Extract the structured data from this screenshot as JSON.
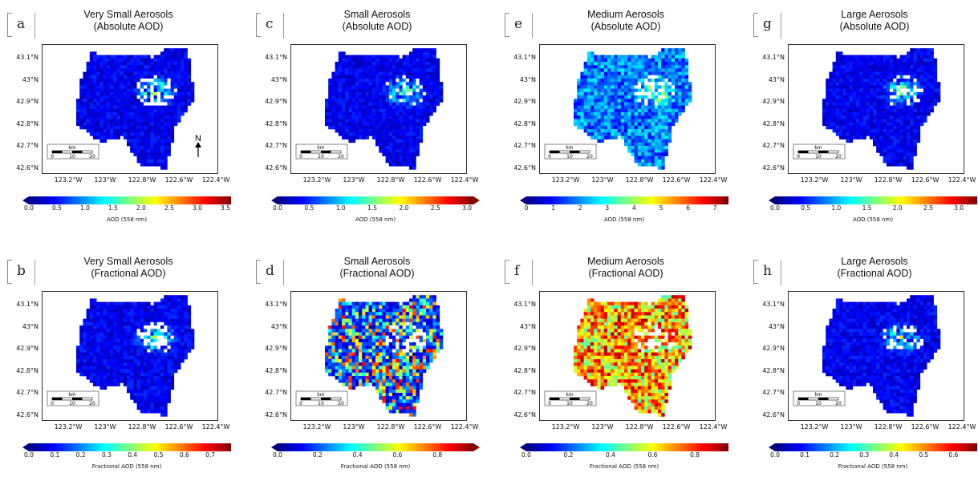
{
  "colorscale": [
    "#00007f",
    "#0000ff",
    "#007fff",
    "#00ffff",
    "#7fff7f",
    "#ffff00",
    "#ff7f00",
    "#ff0000",
    "#7f0000"
  ],
  "panels": [
    {
      "letter": "a",
      "title1": "Very Small Aerosols",
      "title2": "(Absolute AOD)",
      "cb_ticks": [
        "0.0",
        "0.5",
        "1.0",
        "1.5",
        "2.0",
        "2.5",
        "3.0",
        "3.5"
      ],
      "cb_label": "AOD (558 nm)",
      "cb_min": 0,
      "cb_max": 3.6,
      "cb_ext": "left",
      "north": true
    },
    {
      "letter": "c",
      "title1": "Small Aerosols",
      "title2": "(Absolute AOD)",
      "cb_ticks": [
        "0.0",
        "0.5",
        "1.0",
        "1.5",
        "2.0",
        "2.5",
        "3.0"
      ],
      "cb_label": "AOD (558 nm)",
      "cb_min": 0,
      "cb_max": 3.1,
      "cb_ext": "both",
      "north": false
    },
    {
      "letter": "e",
      "title1": "Medium Aerosols",
      "title2": "(Absolute AOD)",
      "cb_ticks": [
        "0",
        "1",
        "2",
        "3",
        "4",
        "5",
        "6",
        "7"
      ],
      "cb_label": "AOD (558 nm)",
      "cb_min": 0,
      "cb_max": 7.5,
      "cb_ext": "left",
      "north": false
    },
    {
      "letter": "g",
      "title1": "Large Aerosols",
      "title2": "(Absolute AOD)",
      "cb_ticks": [
        "0.0",
        "0.5",
        "1.0",
        "1.5",
        "2.0",
        "2.5",
        "3.0"
      ],
      "cb_label": "AOD (558 nm)",
      "cb_min": 0,
      "cb_max": 3.3,
      "cb_ext": "left",
      "north": false
    },
    {
      "letter": "b",
      "title1": "Very Small Aerosols",
      "title2": "(Fractional AOD)",
      "cb_ticks": [
        "0.0",
        "0.1",
        "0.2",
        "0.3",
        "0.4",
        "0.5",
        "0.6",
        "0.7"
      ],
      "cb_label": "Fractional AOD (558 nm)",
      "cb_min": 0,
      "cb_max": 0.78,
      "cb_ext": "left",
      "north": false
    },
    {
      "letter": "d",
      "title1": "Small Aerosols",
      "title2": "(Fractional AOD)",
      "cb_ticks": [
        "0.0",
        "0.2",
        "0.4",
        "0.6",
        "0.8"
      ],
      "cb_label": "Fractional AOD (558 nm)",
      "cb_min": 0,
      "cb_max": 0.98,
      "cb_ext": "both",
      "north": false
    },
    {
      "letter": "f",
      "title1": "Medium Aerosols",
      "title2": "(Fractional AOD)",
      "cb_ticks": [
        "0.0",
        "0.2",
        "0.4",
        "0.6",
        "0.8"
      ],
      "cb_label": "Fractional AOD (558 nm)",
      "cb_min": 0,
      "cb_max": 0.96,
      "cb_ext": "left",
      "north": false
    },
    {
      "letter": "h",
      "title1": "Large Aerosols",
      "title2": "(Fractional AOD)",
      "cb_ticks": [
        "0.0",
        "0.1",
        "0.2",
        "0.3",
        "0.4",
        "0.5",
        "0.6"
      ],
      "cb_label": "Fractional AOD (558 nm)",
      "cb_min": 0,
      "cb_max": 0.68,
      "cb_ext": "left",
      "north": false
    }
  ],
  "yticks": [
    "43.1°N",
    "43°N",
    "42.9°N",
    "42.8°N",
    "42.7°N",
    "42.6°N"
  ],
  "xticks": [
    "123.2°W",
    "123°W",
    "122.8°W",
    "122.6°W",
    "122.4°W"
  ],
  "scalebar": {
    "unit": "km",
    "ticks": [
      "0",
      "10",
      "20"
    ]
  },
  "north_label": "N",
  "chart_data": {
    "type": "heatmap",
    "note_layout": "2x4 grid of map panels",
    "panels": [
      {
        "id": "a",
        "variable": "Very Small Aerosols Absolute AOD",
        "range": [
          0,
          3.5
        ]
      },
      {
        "id": "c",
        "variable": "Small Aerosols Absolute AOD",
        "range": [
          0,
          3.0
        ]
      },
      {
        "id": "e",
        "variable": "Medium Aerosols Absolute AOD",
        "range": [
          0,
          7
        ]
      },
      {
        "id": "g",
        "variable": "Large Aerosols Absolute AOD",
        "range": [
          0,
          3.0
        ]
      },
      {
        "id": "b",
        "variable": "Very Small Aerosols Fractional AOD",
        "range": [
          0,
          0.7
        ]
      },
      {
        "id": "d",
        "variable": "Small Aerosols Fractional AOD",
        "range": [
          0,
          0.8
        ]
      },
      {
        "id": "f",
        "variable": "Medium Aerosols Fractional AOD",
        "range": [
          0,
          0.8
        ]
      },
      {
        "id": "h",
        "variable": "Large Aerosols Fractional AOD",
        "range": [
          0,
          0.6
        ]
      }
    ],
    "lat_range": [
      42.6,
      43.15
    ],
    "lon_range": [
      -123.3,
      -122.3
    ]
  }
}
